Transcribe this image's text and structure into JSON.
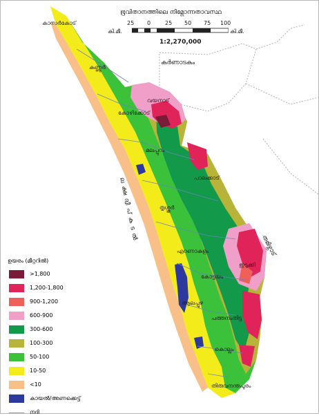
{
  "map": {
    "title": "ഭൂവിതാനത്തിലെ നിമ്നോന്നതാവസ്ഥ",
    "scale": {
      "unit_left": "കി.മീ.",
      "unit_right": "കി.മീ.",
      "ticks": [
        "25",
        "0",
        "25",
        "50",
        "75",
        "100"
      ],
      "ratio": "1:2,270,000"
    },
    "regions": {
      "karnataka": "കർണാടകം",
      "tamilnadu": "തമിഴ്നാട്",
      "sea": "ല ക്ഷ ദ്വീ പ് ക ട ൽ"
    },
    "districts": [
      "കാസർകോട്",
      "കണ്ണൂർ",
      "വയനാട്",
      "കോഴിക്കോട്",
      "മലപ്പുറം",
      "പാലക്കാട്",
      "തൃശ്ശൂർ",
      "എറണാകുളം",
      "ഇടുക്കി",
      "കോട്ടയം",
      "ആലപ്പുഴ",
      "പത്തനംതിട്ട",
      "കൊല്ലം",
      "തിരുവനന്തപുരം"
    ],
    "legend": {
      "title": "ഉയരം (മീറ്ററിൽ)",
      "items": [
        {
          "label": ">1,800",
          "color": "#7a1b3a"
        },
        {
          "label": "1,200-1,800",
          "color": "#e0245a"
        },
        {
          "label": "900-1,200",
          "color": "#f0605a"
        },
        {
          "label": "600-900",
          "color": "#f0a0c8"
        },
        {
          "label": "300-600",
          "color": "#129a4a"
        },
        {
          "label": "100-300",
          "color": "#b8b43a"
        },
        {
          "label": "50-100",
          "color": "#3cc23a"
        },
        {
          "label": "10-50",
          "color": "#f4ec1a"
        },
        {
          "label": "<10",
          "color": "#f8bf88"
        },
        {
          "label": "കായൽ/അണക്കെട്ട്",
          "color": "#2c3aa0"
        }
      ],
      "river_label": "നദി",
      "river_color": "#8aa4c8"
    }
  }
}
